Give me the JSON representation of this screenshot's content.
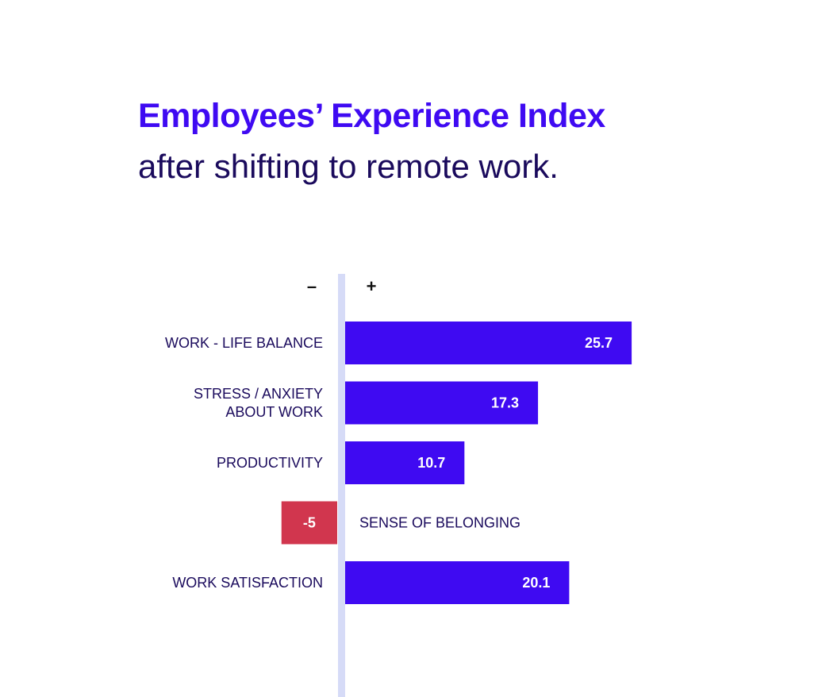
{
  "title": "Employees’ Experience Index",
  "subtitle": "after shifting to remote work.",
  "chart_data": {
    "type": "bar",
    "orientation": "horizontal",
    "negative_sign": "–",
    "positive_sign": "+",
    "categories": [
      [
        "WORK - LIFE BALANCE"
      ],
      [
        "STRESS / ANXIETY",
        "ABOUT WORK"
      ],
      [
        "PRODUCTIVITY"
      ],
      [
        "SENSE OF BELONGING"
      ],
      [
        "WORK SATISFACTION"
      ]
    ],
    "values": [
      25.7,
      17.3,
      10.7,
      -5,
      20.1
    ],
    "value_labels": [
      "25.7",
      "17.3",
      "10.7",
      "-5",
      "20.1"
    ],
    "colors": {
      "positive": "#3f0af2",
      "negative": "#d1364e",
      "axis": "#d6dbf7"
    },
    "grid": false,
    "legend": "none"
  }
}
